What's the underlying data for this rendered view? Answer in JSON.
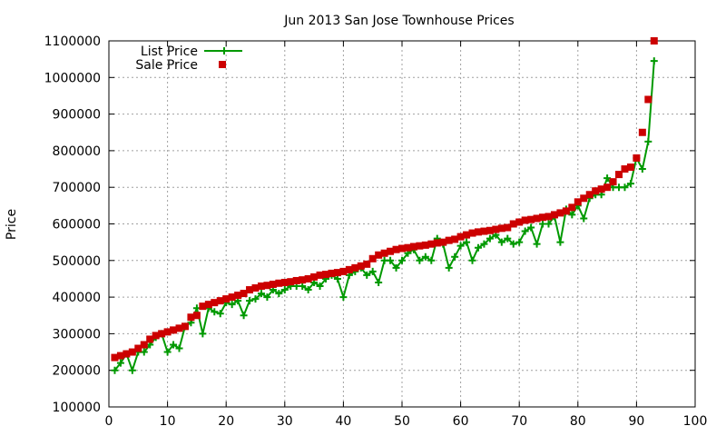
{
  "chart_data": {
    "type": "line",
    "title": "Jun 2013 San Jose Townhouse Prices",
    "xlabel": "",
    "ylabel": "Price",
    "xlim": [
      0,
      100
    ],
    "ylim": [
      100000,
      1100000
    ],
    "x_ticks": [
      "0",
      "10",
      "20",
      "30",
      "40",
      "50",
      "60",
      "70",
      "80",
      "90",
      "100"
    ],
    "y_ticks": [
      "100000",
      "200000",
      "300000",
      "400000",
      "500000",
      "600000",
      "700000",
      "800000",
      "900000",
      "1000000",
      "1100000"
    ],
    "grid": true,
    "legend_position": "top-left",
    "series": [
      {
        "name": "List Price",
        "style": "lines+plus-markers",
        "color": "#009900",
        "x": [
          1,
          2,
          3,
          4,
          5,
          6,
          7,
          8,
          9,
          10,
          11,
          12,
          13,
          14,
          15,
          16,
          17,
          18,
          19,
          20,
          21,
          22,
          23,
          24,
          25,
          26,
          27,
          28,
          29,
          30,
          31,
          32,
          33,
          34,
          35,
          36,
          37,
          38,
          39,
          40,
          41,
          42,
          43,
          44,
          45,
          46,
          47,
          48,
          49,
          50,
          51,
          52,
          53,
          54,
          55,
          56,
          57,
          58,
          59,
          60,
          61,
          62,
          63,
          64,
          65,
          66,
          67,
          68,
          69,
          70,
          71,
          72,
          73,
          74,
          75,
          76,
          77,
          78,
          79,
          80,
          81,
          82,
          83,
          84,
          85,
          86,
          87,
          88,
          89,
          90,
          91,
          92,
          93
        ],
        "y": [
          200000,
          220000,
          245000,
          200000,
          250000,
          250000,
          270000,
          290000,
          300000,
          250000,
          270000,
          260000,
          320000,
          330000,
          370000,
          300000,
          370000,
          360000,
          355000,
          385000,
          380000,
          390000,
          350000,
          390000,
          395000,
          410000,
          400000,
          420000,
          410000,
          420000,
          430000,
          430000,
          430000,
          420000,
          440000,
          430000,
          450000,
          460000,
          450000,
          400000,
          460000,
          470000,
          480000,
          460000,
          470000,
          440000,
          500000,
          500000,
          480000,
          500000,
          520000,
          530000,
          500000,
          510000,
          500000,
          560000,
          545000,
          480000,
          510000,
          540000,
          550000,
          500000,
          535000,
          545000,
          560000,
          570000,
          550000,
          560000,
          545000,
          550000,
          580000,
          590000,
          545000,
          600000,
          600000,
          620000,
          550000,
          640000,
          625000,
          650000,
          615000,
          670000,
          680000,
          680000,
          725000,
          700000,
          700000,
          700000,
          710000,
          780000,
          750000,
          825000,
          1045000
        ]
      },
      {
        "name": "Sale Price",
        "style": "square-markers",
        "color": "#cc0000",
        "x": [
          1,
          2,
          3,
          4,
          5,
          6,
          7,
          8,
          9,
          10,
          11,
          12,
          13,
          14,
          15,
          16,
          17,
          18,
          19,
          20,
          21,
          22,
          23,
          24,
          25,
          26,
          27,
          28,
          29,
          30,
          31,
          32,
          33,
          34,
          35,
          36,
          37,
          38,
          39,
          40,
          41,
          42,
          43,
          44,
          45,
          46,
          47,
          48,
          49,
          50,
          51,
          52,
          53,
          54,
          55,
          56,
          57,
          58,
          59,
          60,
          61,
          62,
          63,
          64,
          65,
          66,
          67,
          68,
          69,
          70,
          71,
          72,
          73,
          74,
          75,
          76,
          77,
          78,
          79,
          80,
          81,
          82,
          83,
          84,
          85,
          86,
          87,
          88,
          89,
          90,
          91,
          92,
          93
        ],
        "y": [
          235000,
          240000,
          245000,
          250000,
          260000,
          270000,
          285000,
          295000,
          300000,
          305000,
          310000,
          315000,
          320000,
          345000,
          350000,
          375000,
          380000,
          385000,
          390000,
          395000,
          400000,
          405000,
          410000,
          420000,
          425000,
          430000,
          432000,
          435000,
          438000,
          440000,
          442000,
          445000,
          447000,
          450000,
          455000,
          460000,
          462000,
          465000,
          467000,
          470000,
          475000,
          480000,
          485000,
          490000,
          505000,
          515000,
          520000,
          525000,
          530000,
          533000,
          535000,
          538000,
          540000,
          542000,
          545000,
          548000,
          550000,
          555000,
          558000,
          565000,
          570000,
          575000,
          578000,
          580000,
          582000,
          585000,
          588000,
          590000,
          600000,
          605000,
          610000,
          612000,
          615000,
          618000,
          620000,
          625000,
          630000,
          635000,
          645000,
          660000,
          670000,
          680000,
          690000,
          695000,
          700000,
          715000,
          735000,
          750000,
          755000,
          780000,
          850000,
          940000,
          1100000
        ]
      }
    ]
  }
}
